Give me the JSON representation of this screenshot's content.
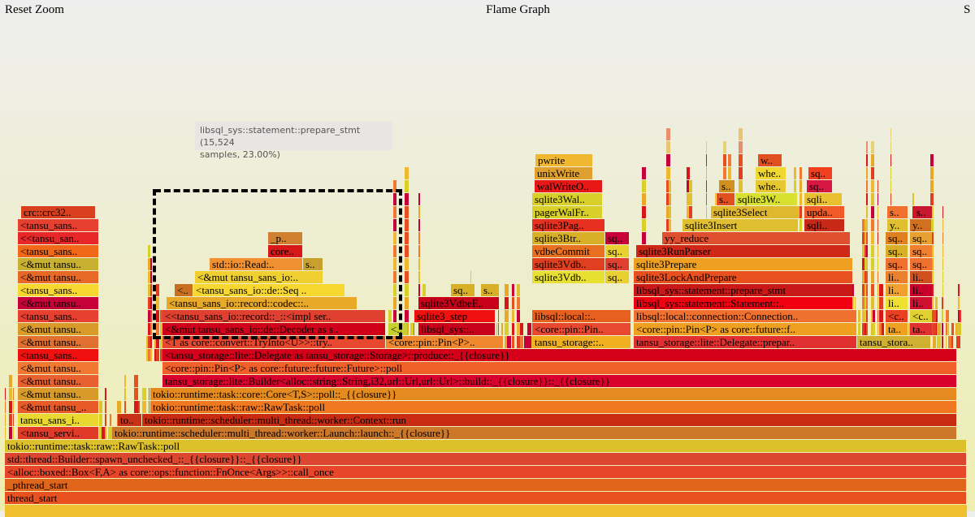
{
  "header": {
    "reset_zoom": "Reset Zoom",
    "title": "Flame Graph",
    "search": "S"
  },
  "tooltip": {
    "line1": "libsql_sys::statement::prepare_stmt (15,524",
    "line2": "samples, 23.00%)"
  },
  "frames": [
    "thread_start",
    "_pthread_start",
    "<alloc::boxed::Box<F,A> as core::ops::function::FnOnce<Args>>::call_once",
    "std::thread::Builder::spawn_unchecked_::_{{closure}}::_{{closure}}",
    "tokio::runtime::task::raw::RawTask::poll",
    "<tansu_servi..",
    "tokio::runtime::scheduler::multi_thread::worker::Launch::launch::_{{closure}}",
    "tansu_sans_i..",
    "to..",
    "tokio::runtime::scheduler::multi_thread::worker::Context::run",
    "<&mut tansu_..",
    "tokio::runtime::task::raw::RawTask::poll",
    "<&mut tansu..",
    "tokio::runtime::task::core::Core<T,S>::poll::_{{closure}}",
    "<&mut tansu..",
    "tansu_storage::lite::Builder<alloc::string::String,i32,url::Url,url::Url>::build::_{{closure}}::_{{closure}}",
    "<&mut tansu..",
    "<core::pin::Pin<P> as core::future::future::Future>::poll",
    "<tansu_sans..",
    "<tansu_storage::lite::Delegate as tansu_storage::Storage>::produce::_{{closure}}",
    "<&mut tansu..",
    "<T as core::convert::TryInto<U>>::try..",
    "<core::pin::Pin<P>..",
    "tansu_storage::..",
    "tansu_storage::lite::Delegate::prepar..",
    "tansu_stora..",
    "<&mut tansu..",
    "<&mut tansu_sans_io::de::Decoder as s..",
    "<..",
    "libsql_sys::..",
    "<core::pin::Pin..",
    "<core::pin::Pin<P> as core::future::f..",
    "ta..",
    "ta..",
    "<tansu_sans..",
    "<<tansu_sans_io::record::_::<impl ser..",
    "sqlite3_step",
    "libsql::local::..",
    "libsql::local::connection::Connection..",
    "<c..",
    "<c..",
    "<&mut tansu..",
    "<tansu_sans_io::record::codec::..",
    "sqlite3VdbeE..",
    "libsql_sys::statement::Statement::..",
    "li..",
    "li..",
    "<tansu_sans..",
    "<..",
    "<tansu_sans_io::de::Seq ..",
    "sq..",
    "s..",
    "libsql_sys::statement::prepare_stmt",
    "li..",
    "li..",
    "<&mut tansu..",
    "<&mut tansu_sans_io:..",
    "sqlite3Vdb..",
    "sq..",
    "sqlite3LockAndPrepare",
    "li..",
    "li..",
    "<&mut tansu..",
    "std::io::Read:..",
    "s..",
    "sqlite3Vdb..",
    "sq..",
    "sqlite3Prepare",
    "sq..",
    "sq..",
    "<tansu_sans..",
    "core..",
    "vdbeCommit",
    "sq..",
    "sqlite3RunParser",
    "sq..",
    "sq..",
    "<<tansu_san..",
    "_p..",
    "sqlite3Btr..",
    "sq..",
    "yy_reduce",
    "sq..",
    "sq..",
    "<tansu_sans..",
    "sqlite3Pag..",
    "sqlite3Insert",
    "sqli..",
    "y..",
    "y..",
    "crc::crc32..",
    "pagerWalFr..",
    "sqlite3Select",
    "upda..",
    "s..",
    "s..",
    "sqlite3Wal..",
    "s..",
    "sqlite3W..",
    "sqli..",
    "walWriteO..",
    "s..",
    "whe..",
    "sq..",
    "unixWrite",
    "whe..",
    "sq..",
    "pwrite",
    "w.."
  ]
}
